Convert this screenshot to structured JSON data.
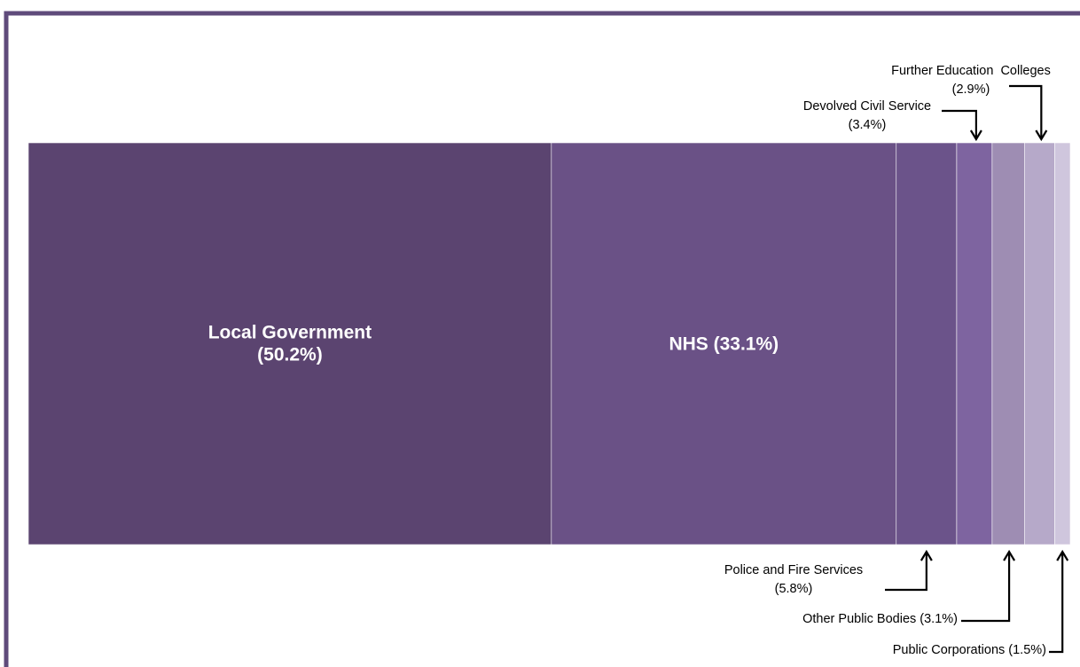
{
  "chart_data": {
    "type": "bar",
    "subtype": "100% stacked horizontal bar",
    "title": "",
    "xlabel": "",
    "ylabel": "",
    "categories": [
      "Local Government",
      "NHS",
      "Police and Fire Services",
      "Devolved Civil Service",
      "Other Public Bodies",
      "Further Education Colleges",
      "Public Corporations"
    ],
    "values": [
      50.2,
      33.1,
      5.8,
      3.4,
      3.1,
      2.9,
      1.5
    ],
    "colors": [
      "#5b4470",
      "#6a5186",
      "#6b538a",
      "#7e64a0",
      "#9e8db3",
      "#b6a9c9",
      "#cfc6dd"
    ],
    "labels": [
      {
        "lines": [
          "Local Government",
          "(50.2%)"
        ],
        "placement": "inside"
      },
      {
        "lines": [
          "NHS (33.1%)"
        ],
        "placement": "inside"
      },
      {
        "lines": [
          "Police and Fire Services",
          "(5.8%)"
        ],
        "placement": "below"
      },
      {
        "lines": [
          "Devolved Civil Service",
          "(3.4%)"
        ],
        "placement": "above"
      },
      {
        "lines": [
          "Other Public Bodies (3.1%)"
        ],
        "placement": "below"
      },
      {
        "lines": [
          "Further Education  Colleges",
          "(2.9%)"
        ],
        "placement": "above"
      },
      {
        "lines": [
          "Public Corporations (1.5%)"
        ],
        "placement": "below"
      }
    ],
    "frame_color": "#5f4b7b",
    "grid": false,
    "legend": "none"
  }
}
